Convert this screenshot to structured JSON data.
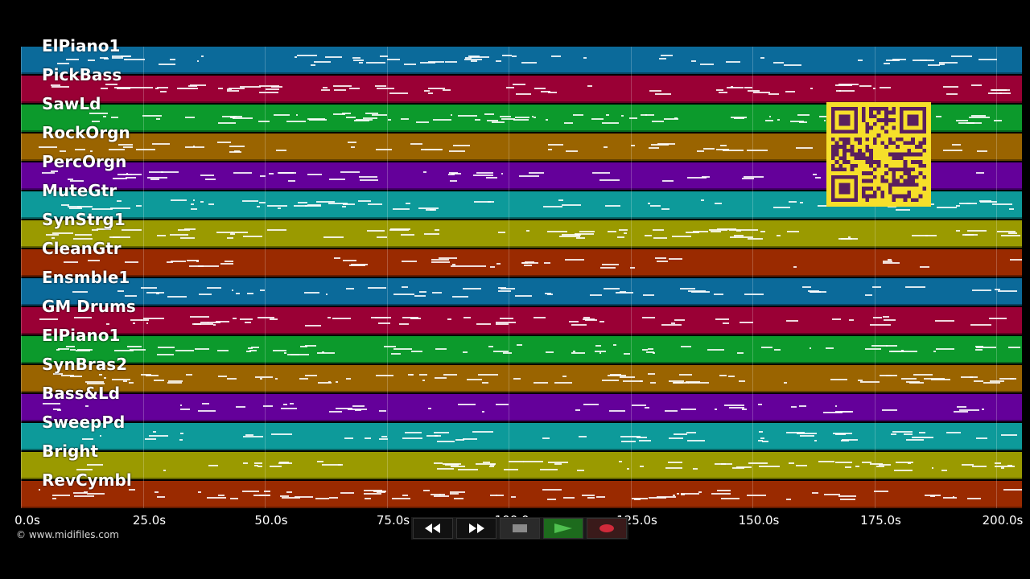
{
  "tracks": [
    {
      "name": "ElPiano1",
      "color": "#0b6a9a"
    },
    {
      "name": "PickBass",
      "color": "#9a0035"
    },
    {
      "name": "SawLd",
      "color": "#0c9a2c"
    },
    {
      "name": "RockOrgn",
      "color": "#9a6400"
    },
    {
      "name": "PercOrgn",
      "color": "#64009a"
    },
    {
      "name": "MuteGtr",
      "color": "#0d9a9a"
    },
    {
      "name": "SynStrg1",
      "color": "#9a9a00"
    },
    {
      "name": "CleanGtr",
      "color": "#9a2a00"
    },
    {
      "name": "Ensmble1",
      "color": "#0b6a9a"
    },
    {
      "name": "GM Drums",
      "color": "#9a0035"
    },
    {
      "name": "ElPiano1",
      "color": "#0c9a2c"
    },
    {
      "name": "SynBras2",
      "color": "#9a6400"
    },
    {
      "name": "Bass&Ld",
      "color": "#64009a"
    },
    {
      "name": "SweepPd",
      "color": "#0d9a9a"
    },
    {
      "name": "Bright",
      "color": "#9a9a00"
    },
    {
      "name": "RevCymbl",
      "color": "#9a2a00"
    }
  ],
  "time_axis": {
    "ticks": [
      "0.0s",
      "25.0s",
      "50.0s",
      "75.0s",
      "100.0s",
      "125.0s",
      "150.0s",
      "175.0s",
      "200.0s"
    ],
    "max_seconds": 205
  },
  "copyright": "© www.midifiles.com",
  "transport": {
    "rewind_icon": "rewind-icon",
    "forward_icon": "fast-forward-icon",
    "stop_icon": "stop-icon",
    "play_icon": "play-icon",
    "record_icon": "record-icon"
  },
  "qr_code": {
    "icon": "qr-code-icon"
  }
}
